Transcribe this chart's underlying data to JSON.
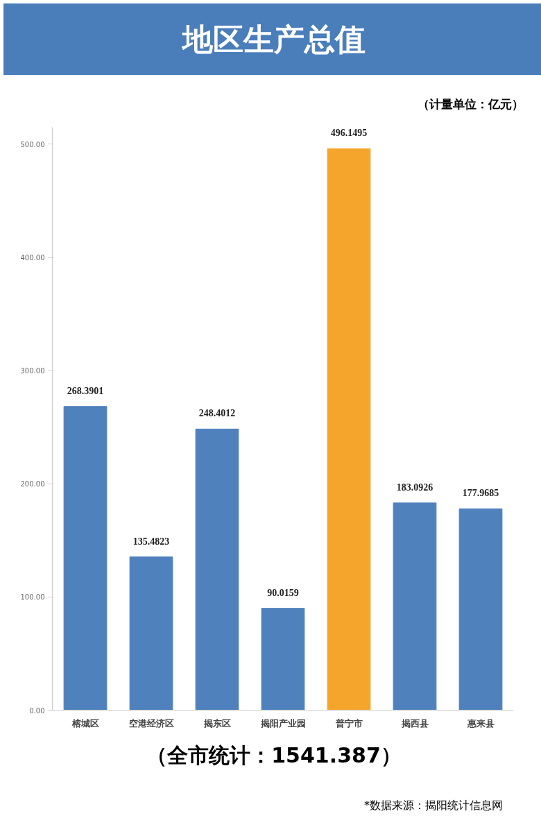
{
  "chart_data": {
    "type": "bar",
    "title": "地区生产总值",
    "categories": [
      "榕城区",
      "空港经济区",
      "揭东区",
      "揭阳产业园",
      "普宁市",
      "揭西县",
      "惠来县"
    ],
    "values": [
      268.3901,
      135.4823,
      248.4012,
      90.0159,
      496.1495,
      183.0926,
      177.9685
    ],
    "colors": [
      "#4f81bd",
      "#4f81bd",
      "#4f81bd",
      "#4f81bd",
      "#f5a42c",
      "#4f81bd",
      "#4f81bd"
    ],
    "ylim": [
      0,
      515
    ],
    "yticks": [
      {
        "value": 0,
        "label": "0.00"
      },
      {
        "value": 100,
        "label": "100.00"
      },
      {
        "value": 200,
        "label": "200.00"
      },
      {
        "value": 300,
        "label": "300.00"
      },
      {
        "value": 400,
        "label": "400.00"
      },
      {
        "value": 500,
        "label": "500.00"
      }
    ],
    "data_labels": true,
    "grid": false,
    "annotations": [
      "（计量单位：亿元）",
      "（全市统计：1541.387）",
      "*数据来源：揭阳统计信息网"
    ]
  }
}
